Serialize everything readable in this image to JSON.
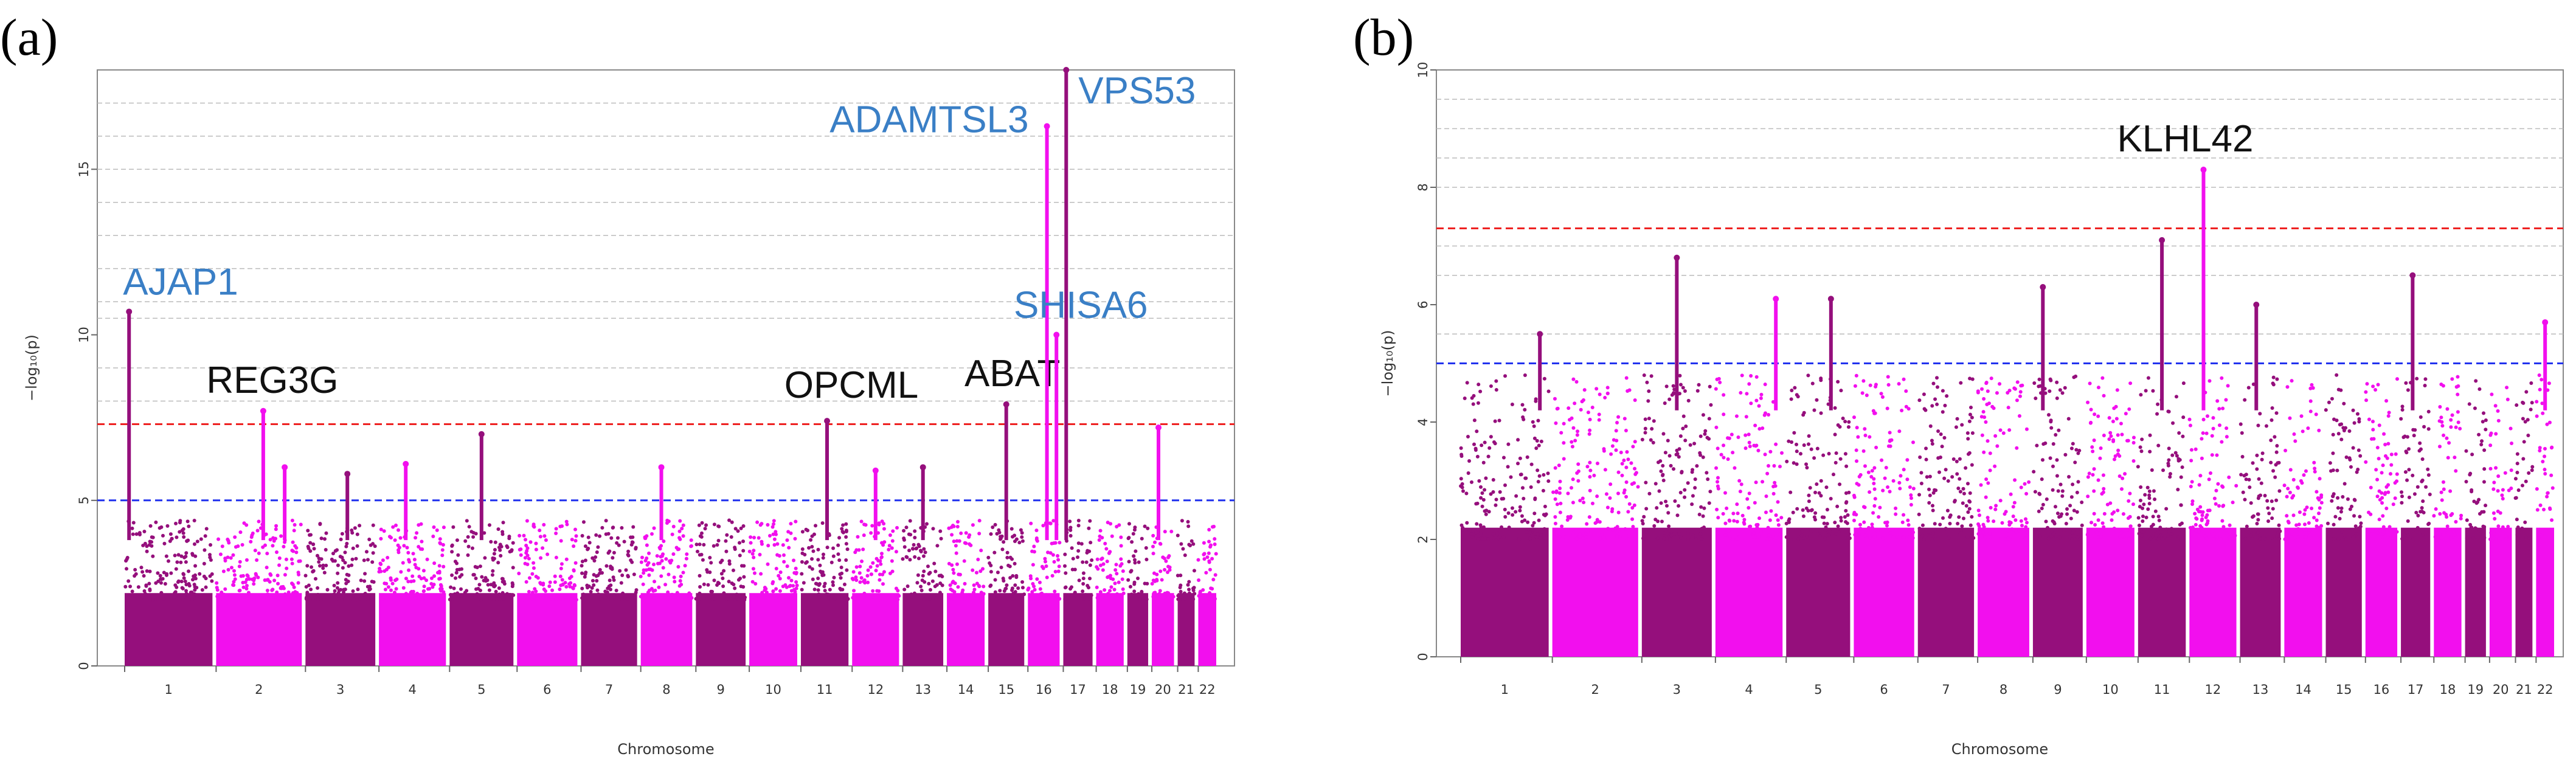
{
  "colors": {
    "dark": "#950f7c",
    "bright": "#f20fee",
    "genomewide": "#ee2222",
    "suggestive": "#2233ee",
    "label_blue": "#3a7fc6",
    "label_black": "#111111"
  },
  "chromosomes": [
    "1",
    "2",
    "3",
    "4",
    "5",
    "6",
    "7",
    "8",
    "9",
    "10",
    "11",
    "12",
    "13",
    "14",
    "15",
    "16",
    "17",
    "18",
    "19",
    "20",
    "21",
    "22"
  ],
  "chr_weights": [
    249,
    243,
    198,
    190,
    181,
    171,
    159,
    146,
    141,
    136,
    135,
    133,
    115,
    107,
    102,
    90,
    83,
    78,
    59,
    63,
    48,
    51
  ],
  "chart_data": [
    {
      "id": "a",
      "type": "scatter",
      "panel_label": "(a)",
      "xlabel": "Chromosome",
      "ylabel": "−log₁₀(p)",
      "ylim": [
        0,
        18
      ],
      "yticks": [
        0,
        5,
        10,
        15
      ],
      "grid_lines": [
        8,
        9,
        10.5,
        11,
        12,
        13,
        14,
        15,
        16,
        17
      ],
      "thresholds": {
        "genomewide": 7.3,
        "suggestive": 5
      },
      "baseline_max": 3.8,
      "hits": [
        {
          "chr": 1,
          "pos": 0.05,
          "p": 10.7,
          "label": "AJAP1",
          "color": "blue"
        },
        {
          "chr": 2,
          "pos": 0.55,
          "p": 7.7,
          "label": "REG3G",
          "color": "black"
        },
        {
          "chr": 11,
          "pos": 0.55,
          "p": 7.4,
          "label": "OPCML",
          "color": "black"
        },
        {
          "chr": 15,
          "pos": 0.5,
          "p": 7.9,
          "label": "ABAT",
          "color": "black"
        },
        {
          "chr": 16,
          "pos": 0.6,
          "p": 16.3,
          "label": "ADAMTSL3",
          "color": "blue"
        },
        {
          "chr": 17,
          "pos": 0.1,
          "p": 18.0,
          "label": "VPS53",
          "color": "blue"
        },
        {
          "chr": 16,
          "pos": 0.9,
          "p": 10.0,
          "label": "SHISA6",
          "color": "blue"
        },
        {
          "chr": 5,
          "pos": 0.5,
          "p": 7.0,
          "label": "",
          "color": ""
        },
        {
          "chr": 20,
          "pos": 0.3,
          "p": 7.2,
          "label": "",
          "color": ""
        },
        {
          "chr": 13,
          "pos": 0.5,
          "p": 6.0,
          "label": "",
          "color": ""
        },
        {
          "chr": 3,
          "pos": 0.6,
          "p": 5.8,
          "label": "",
          "color": ""
        },
        {
          "chr": 8,
          "pos": 0.4,
          "p": 6.0,
          "label": "",
          "color": ""
        },
        {
          "chr": 4,
          "pos": 0.4,
          "p": 6.1,
          "label": "",
          "color": ""
        },
        {
          "chr": 12,
          "pos": 0.5,
          "p": 5.9,
          "label": "",
          "color": ""
        },
        {
          "chr": 2,
          "pos": 0.8,
          "p": 6.0,
          "label": "",
          "color": ""
        }
      ]
    },
    {
      "id": "b",
      "type": "scatter",
      "panel_label": "(b)",
      "xlabel": "Chromosome",
      "ylabel": "−log₁₀(p)",
      "ylim": [
        0,
        10
      ],
      "yticks": [
        0,
        2,
        4,
        6,
        8,
        10
      ],
      "grid_lines": [
        5.5,
        6.5,
        7,
        8,
        8.5,
        9,
        9.5
      ],
      "thresholds": {
        "genomewide": 7.3,
        "suggestive": 5
      },
      "baseline_max": 4.2,
      "hits": [
        {
          "chr": 12,
          "pos": 0.3,
          "p": 8.3,
          "label": "KLHL42",
          "color": "black"
        },
        {
          "chr": 11,
          "pos": 0.5,
          "p": 7.1,
          "label": "",
          "color": ""
        },
        {
          "chr": 3,
          "pos": 0.5,
          "p": 6.8,
          "label": "",
          "color": ""
        },
        {
          "chr": 5,
          "pos": 0.7,
          "p": 6.1,
          "label": "",
          "color": ""
        },
        {
          "chr": 9,
          "pos": 0.2,
          "p": 6.3,
          "label": "",
          "color": ""
        },
        {
          "chr": 13,
          "pos": 0.4,
          "p": 6.0,
          "label": "",
          "color": ""
        },
        {
          "chr": 17,
          "pos": 0.4,
          "p": 6.5,
          "label": "",
          "color": ""
        },
        {
          "chr": 4,
          "pos": 0.9,
          "p": 6.1,
          "label": "",
          "color": ""
        },
        {
          "chr": 22,
          "pos": 0.5,
          "p": 5.7,
          "label": "",
          "color": ""
        },
        {
          "chr": 1,
          "pos": 0.9,
          "p": 5.5,
          "label": "",
          "color": ""
        }
      ]
    }
  ]
}
